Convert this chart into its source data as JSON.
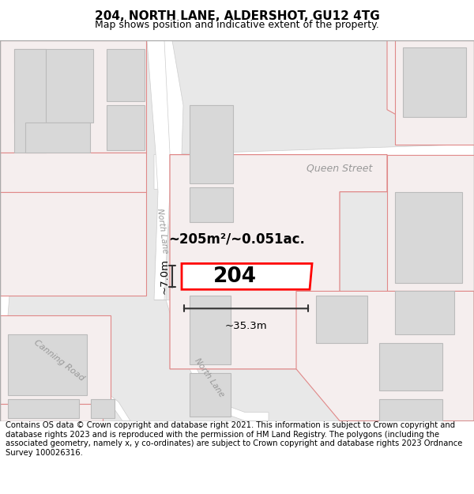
{
  "title": "204, NORTH LANE, ALDERSHOT, GU12 4TG",
  "subtitle": "Map shows position and indicative extent of the property.",
  "footer": "Contains OS data © Crown copyright and database right 2021. This information is subject to Crown copyright and database rights 2023 and is reproduced with the permission of HM Land Registry. The polygons (including the associated geometry, namely x, y co-ordinates) are subject to Crown copyright and database rights 2023 Ordnance Survey 100026316.",
  "label_204": "204",
  "area_label": "~205m²/~0.051ac.",
  "width_label": "~35.3m",
  "height_label": "~7.0m",
  "street_queen": "Queen Street",
  "street_north_top": "North Lane",
  "street_north_bottom": "North Lane",
  "street_canning": "Canning Road",
  "map_bg": "#f0f0f0",
  "road_bg": "#ffffff",
  "building_fill": "#d8d8d8",
  "building_edge": "#bbbbbb",
  "plot_fill": "#ececec",
  "plot_edge": "#e08080",
  "highlight_edge": "#ff0000",
  "dim_color": "#333333",
  "street_color": "#999999",
  "title_fontsize": 11,
  "subtitle_fontsize": 9,
  "footer_fontsize": 7.2
}
